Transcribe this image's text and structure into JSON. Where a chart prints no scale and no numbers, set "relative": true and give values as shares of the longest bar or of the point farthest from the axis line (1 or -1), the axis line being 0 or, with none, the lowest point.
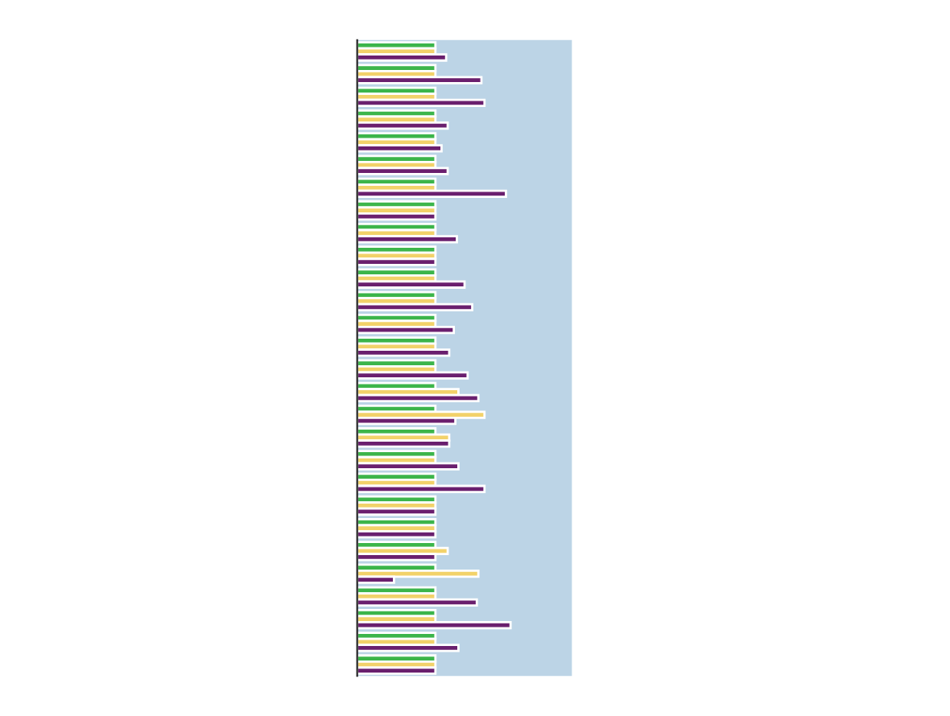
{
  "chart_data": {
    "type": "bar",
    "orientation": "horizontal",
    "relative": true,
    "categories": [
      null,
      null,
      null,
      null,
      null,
      null,
      null,
      null,
      null,
      null,
      null,
      null,
      null,
      null,
      null,
      null,
      null,
      null,
      null,
      null,
      null,
      null,
      null,
      null,
      null,
      null,
      null,
      null
    ],
    "series": [
      {
        "color": "#3cb54a",
        "values": [
          0.51,
          0.51,
          0.51,
          0.51,
          0.51,
          0.51,
          0.51,
          0.51,
          0.51,
          0.51,
          0.51,
          0.51,
          0.51,
          0.51,
          0.51,
          0.51,
          0.51,
          0.51,
          0.51,
          0.51,
          0.51,
          0.51,
          0.51,
          0.51,
          0.51,
          0.51,
          0.51,
          0.51
        ]
      },
      {
        "color": "#f2d26a",
        "values": [
          0.51,
          0.51,
          0.51,
          0.51,
          0.51,
          0.51,
          0.51,
          0.51,
          0.51,
          0.51,
          0.51,
          0.51,
          0.51,
          0.51,
          0.51,
          0.66,
          0.83,
          0.6,
          0.51,
          0.51,
          0.51,
          0.51,
          0.59,
          0.79,
          0.51,
          0.51,
          0.51,
          0.51
        ]
      },
      {
        "color": "#6a1f6e",
        "values": [
          0.58,
          0.81,
          0.83,
          0.59,
          0.55,
          0.59,
          0.97,
          0.51,
          0.65,
          0.51,
          0.7,
          0.75,
          0.63,
          0.6,
          0.72,
          0.79,
          0.64,
          0.6,
          0.66,
          0.83,
          0.51,
          0.51,
          0.51,
          0.24,
          0.78,
          1.0,
          0.66,
          0.51
        ]
      }
    ]
  }
}
